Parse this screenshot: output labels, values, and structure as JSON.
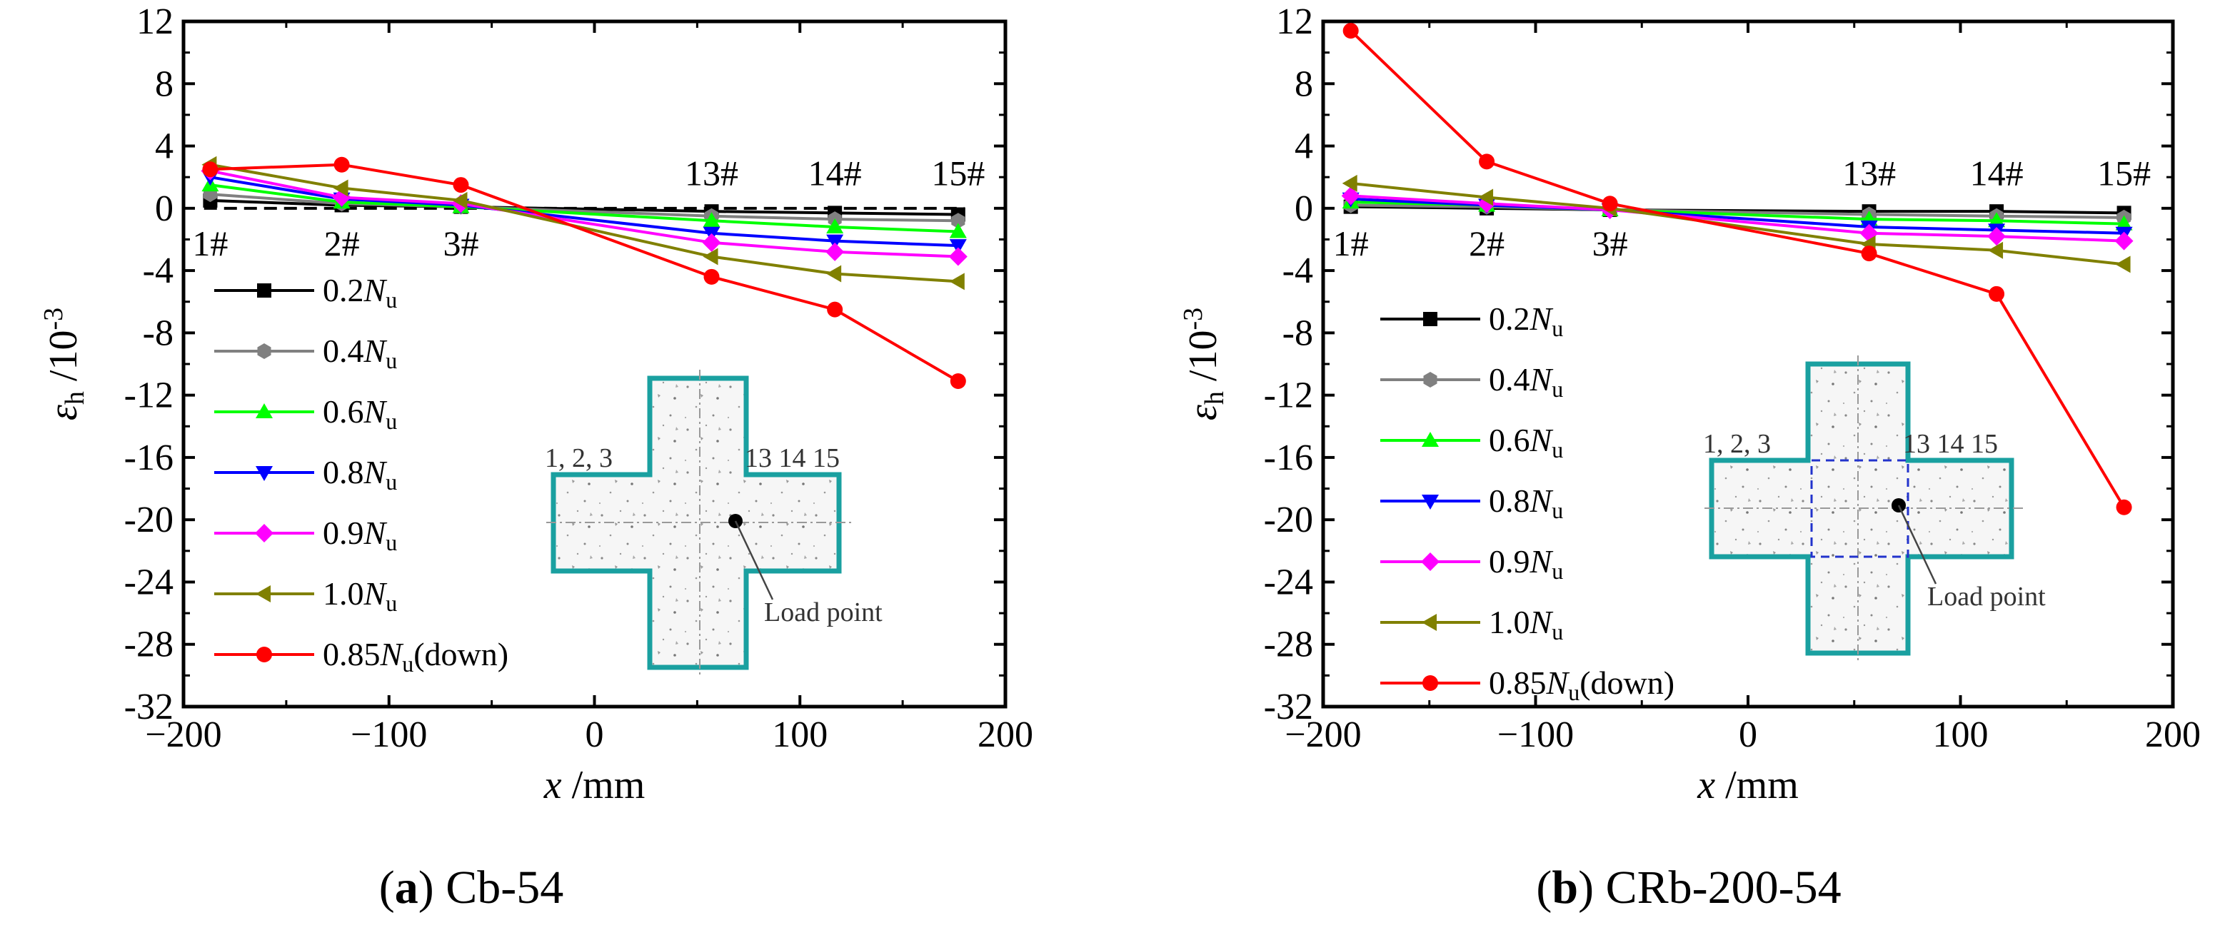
{
  "chart_data": [
    {
      "type": "line",
      "panel_letter": "(a)",
      "caption": "Cb-54",
      "xlabel": "x /mm",
      "ylabel": "εh /10-3",
      "xlim": [
        -200,
        200
      ],
      "ylim": [
        -32,
        12
      ],
      "xticks": [
        -200,
        -100,
        0,
        100,
        200
      ],
      "yticks": [
        12,
        8,
        4,
        0,
        -4,
        -8,
        -12,
        -16,
        -20,
        -24,
        -28,
        -32
      ],
      "x": [
        -187,
        -123,
        -65,
        57,
        117,
        177
      ],
      "gauge_labels": [
        {
          "text": "1#",
          "x": -187,
          "y": -2.2
        },
        {
          "text": "2#",
          "x": -123,
          "y": -2.2
        },
        {
          "text": "3#",
          "x": -65,
          "y": -2.2
        },
        {
          "text": "13#",
          "x": 57,
          "y": 2.3
        },
        {
          "text": "14#",
          "x": 117,
          "y": 2.3
        },
        {
          "text": "15#",
          "x": 177,
          "y": 2.3
        }
      ],
      "series": [
        {
          "name": "0.2Nu",
          "color": "#000000",
          "marker": "square",
          "values": [
            0.5,
            0.2,
            0.1,
            -0.2,
            -0.3,
            -0.4
          ]
        },
        {
          "name": "0.4Nu",
          "color": "#808080",
          "marker": "hexagon",
          "values": [
            0.9,
            0.3,
            0.1,
            -0.5,
            -0.7,
            -0.8
          ]
        },
        {
          "name": "0.6Nu",
          "color": "#00ff00",
          "marker": "triangle-up",
          "values": [
            1.5,
            0.4,
            0.1,
            -0.8,
            -1.2,
            -1.5
          ]
        },
        {
          "name": "0.8Nu",
          "color": "#0000ff",
          "marker": "triangle-down",
          "values": [
            2.0,
            0.6,
            0.2,
            -1.6,
            -2.1,
            -2.4
          ]
        },
        {
          "name": "0.9Nu",
          "color": "#ff00ff",
          "marker": "diamond",
          "values": [
            2.4,
            0.7,
            0.3,
            -2.2,
            -2.8,
            -3.1
          ]
        },
        {
          "name": "1.0Nu",
          "color": "#808000",
          "marker": "triangle-left",
          "values": [
            2.8,
            1.3,
            0.5,
            -3.1,
            -4.2,
            -4.7
          ]
        },
        {
          "name": "0.85Nu(down)",
          "color": "#ff0000",
          "marker": "circle",
          "values": [
            2.5,
            2.8,
            1.5,
            -4.4,
            -6.5,
            -11.1
          ]
        }
      ],
      "inset": {
        "note": "Load point",
        "gauges_left": "1, 2, 3",
        "gauges_right": "13 14 15"
      }
    },
    {
      "type": "line",
      "panel_letter": "(b)",
      "caption": "CRb-200-54",
      "xlabel": "x /mm",
      "ylabel": "εh /10-3",
      "xlim": [
        -200,
        200
      ],
      "ylim": [
        -32,
        12
      ],
      "xticks": [
        -200,
        -100,
        0,
        100,
        200
      ],
      "yticks": [
        12,
        8,
        4,
        0,
        -4,
        -8,
        -12,
        -16,
        -20,
        -24,
        -28,
        -32
      ],
      "x": [
        -187,
        -123,
        -65,
        57,
        117,
        177
      ],
      "gauge_labels": [
        {
          "text": "1#",
          "x": -187,
          "y": -2.2
        },
        {
          "text": "2#",
          "x": -123,
          "y": -2.2
        },
        {
          "text": "3#",
          "x": -65,
          "y": -2.2
        },
        {
          "text": "13#",
          "x": 57,
          "y": 2.3
        },
        {
          "text": "14#",
          "x": 117,
          "y": 2.3
        },
        {
          "text": "15#",
          "x": 177,
          "y": 2.3
        }
      ],
      "series": [
        {
          "name": "0.2Nu",
          "color": "#000000",
          "marker": "square",
          "values": [
            0.1,
            0.0,
            -0.1,
            -0.2,
            -0.2,
            -0.3
          ]
        },
        {
          "name": "0.4Nu",
          "color": "#808080",
          "marker": "hexagon",
          "values": [
            0.2,
            0.1,
            -0.1,
            -0.4,
            -0.5,
            -0.6
          ]
        },
        {
          "name": "0.6Nu",
          "color": "#00ff00",
          "marker": "triangle-up",
          "values": [
            0.4,
            0.2,
            -0.1,
            -0.7,
            -0.8,
            -1.0
          ]
        },
        {
          "name": "0.8Nu",
          "color": "#0000ff",
          "marker": "triangle-down",
          "values": [
            0.6,
            0.2,
            -0.1,
            -1.2,
            -1.4,
            -1.6
          ]
        },
        {
          "name": "0.9Nu",
          "color": "#ff00ff",
          "marker": "diamond",
          "values": [
            0.8,
            0.3,
            -0.1,
            -1.6,
            -1.8,
            -2.1
          ]
        },
        {
          "name": "1.0Nu",
          "color": "#808000",
          "marker": "triangle-left",
          "values": [
            1.6,
            0.7,
            0.0,
            -2.3,
            -2.7,
            -3.6
          ]
        },
        {
          "name": "0.85Nu(down)",
          "color": "#ff0000",
          "marker": "circle",
          "values": [
            11.4,
            3.0,
            0.3,
            -2.9,
            -5.5,
            -19.2
          ]
        }
      ],
      "inset": {
        "note": "Load point",
        "gauges_left": "1, 2, 3",
        "gauges_right": "13 14 15"
      }
    }
  ]
}
